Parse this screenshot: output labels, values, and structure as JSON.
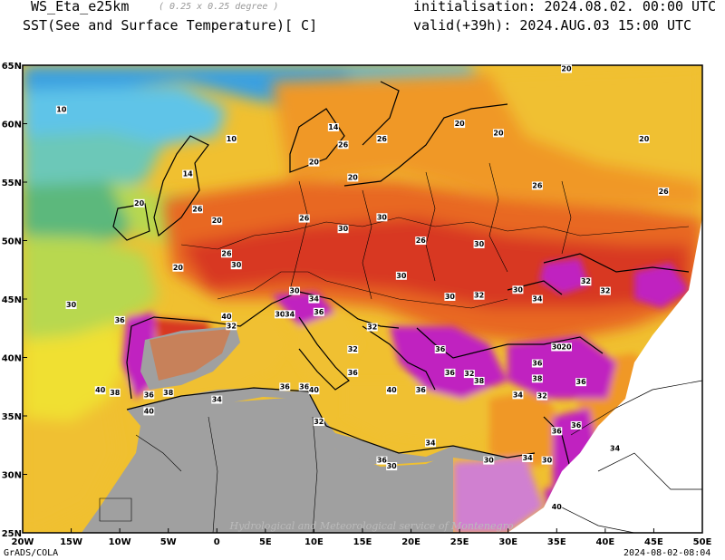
{
  "header": {
    "model": "WS_Eta_e25km",
    "resolution": "( 0.25 x 0.25 degree )",
    "variable": "SST(See and Surface Temperature)[ C]",
    "init": "initialisation: 2024.08.02. 00:00 UTC",
    "valid": "valid(+39h): 2024.AUG.03 15:00 UTC"
  },
  "footer": {
    "left": "GrADS/COLA",
    "right": "2024-08-02-08:04",
    "watermark": "Hydrological and Meteorological service of Montenegro"
  },
  "map": {
    "lon_ticks": [
      "20W",
      "15W",
      "10W",
      "5W",
      "0",
      "5E",
      "10E",
      "15E",
      "20E",
      "25E",
      "30E",
      "35E",
      "40E",
      "45E",
      "50E"
    ],
    "lat_ticks": [
      "65N",
      "60N",
      "55N",
      "50N",
      "45N",
      "40N",
      "35N",
      "30N",
      "25N"
    ],
    "colors": {
      "deep_blue": "#3aa0e0",
      "light_blue": "#5ec4e8",
      "teal": "#6cc8b8",
      "green": "#5cb87c",
      "yellow_green": "#b8d850",
      "yellow": "#f0e030",
      "gold": "#f0c030",
      "orange": "#f09828",
      "dark_orange": "#e86820",
      "red": "#d83820",
      "magenta": "#c020c0",
      "violet": "#d080d0",
      "land_gray": "#a0a0a0"
    },
    "contour_labels": [
      {
        "t": "10",
        "lon": -16,
        "lat": 61
      },
      {
        "t": "10",
        "lon": 1.5,
        "lat": 58.5
      },
      {
        "t": "14",
        "lon": -3,
        "lat": 55.5
      },
      {
        "t": "20",
        "lon": -8,
        "lat": 53
      },
      {
        "t": "26",
        "lon": -2,
        "lat": 52.5
      },
      {
        "t": "20",
        "lon": 0,
        "lat": 51.5
      },
      {
        "t": "26",
        "lon": 1,
        "lat": 48.7
      },
      {
        "t": "30",
        "lon": 2,
        "lat": 47.7
      },
      {
        "t": "20",
        "lon": -4,
        "lat": 47.5
      },
      {
        "t": "14",
        "lon": 12,
        "lat": 59.5
      },
      {
        "t": "20",
        "lon": 10,
        "lat": 56.5
      },
      {
        "t": "26",
        "lon": 13,
        "lat": 58
      },
      {
        "t": "26",
        "lon": 17,
        "lat": 58.5
      },
      {
        "t": "26",
        "lon": 9,
        "lat": 51.7
      },
      {
        "t": "30",
        "lon": 13,
        "lat": 50.8
      },
      {
        "t": "30",
        "lon": 17,
        "lat": 51.8
      },
      {
        "t": "26",
        "lon": 21,
        "lat": 49.8
      },
      {
        "t": "30",
        "lon": 27,
        "lat": 49.5
      },
      {
        "t": "30",
        "lon": 19,
        "lat": 46.8
      },
      {
        "t": "32",
        "lon": 38,
        "lat": 46.3
      },
      {
        "t": "32",
        "lon": 40,
        "lat": 45.5
      },
      {
        "t": "30",
        "lon": 24,
        "lat": 45
      },
      {
        "t": "32",
        "lon": 27,
        "lat": 45.1
      },
      {
        "t": "30",
        "lon": 31,
        "lat": 45.6
      },
      {
        "t": "34",
        "lon": 33,
        "lat": 44.8
      },
      {
        "t": "30",
        "lon": 8,
        "lat": 45.5
      },
      {
        "t": "34",
        "lon": 10,
        "lat": 44.8
      },
      {
        "t": "36",
        "lon": 10.5,
        "lat": 43.7
      },
      {
        "t": "32",
        "lon": 16,
        "lat": 42.4
      },
      {
        "t": "32",
        "lon": 14,
        "lat": 40.5
      },
      {
        "t": "36",
        "lon": 14,
        "lat": 38.5
      },
      {
        "t": "36",
        "lon": 23,
        "lat": 40.5
      },
      {
        "t": "36",
        "lon": 24,
        "lat": 38.5
      },
      {
        "t": "32",
        "lon": 26,
        "lat": 38.4
      },
      {
        "t": "38",
        "lon": 27,
        "lat": 37.8
      },
      {
        "t": "36",
        "lon": 33,
        "lat": 39.3
      },
      {
        "t": "38",
        "lon": 33,
        "lat": 38
      },
      {
        "t": "34",
        "lon": 31,
        "lat": 36.6
      },
      {
        "t": "32",
        "lon": 33.5,
        "lat": 36.5
      },
      {
        "t": "30",
        "lon": 35,
        "lat": 40.7
      },
      {
        "t": "20",
        "lon": 36,
        "lat": 40.7
      },
      {
        "t": "36",
        "lon": 37.5,
        "lat": 37.7
      },
      {
        "t": "40",
        "lon": 18,
        "lat": 37
      },
      {
        "t": "36",
        "lon": 21,
        "lat": 37
      },
      {
        "t": "30",
        "lon": -15,
        "lat": 44.3
      },
      {
        "t": "36",
        "lon": -10,
        "lat": 43
      },
      {
        "t": "40",
        "lon": -12,
        "lat": 37
      },
      {
        "t": "38",
        "lon": -10.5,
        "lat": 36.8
      },
      {
        "t": "36",
        "lon": -7,
        "lat": 36.6
      },
      {
        "t": "38",
        "lon": -5,
        "lat": 36.8
      },
      {
        "t": "40",
        "lon": -7,
        "lat": 35.2
      },
      {
        "t": "34",
        "lon": 0,
        "lat": 36.2
      },
      {
        "t": "32",
        "lon": 1.5,
        "lat": 42.5
      },
      {
        "t": "40",
        "lon": 1,
        "lat": 43.3
      },
      {
        "t": "30",
        "lon": 6.5,
        "lat": 43.5
      },
      {
        "t": "34",
        "lon": 7.5,
        "lat": 43.5
      },
      {
        "t": "36",
        "lon": 7,
        "lat": 37.3
      },
      {
        "t": "36",
        "lon": 9,
        "lat": 37.3
      },
      {
        "t": "40",
        "lon": 10,
        "lat": 37
      },
      {
        "t": "32",
        "lon": 10.5,
        "lat": 34.3
      },
      {
        "t": "34",
        "lon": 22,
        "lat": 32.5
      },
      {
        "t": "30",
        "lon": 18,
        "lat": 30.5
      },
      {
        "t": "36",
        "lon": 17,
        "lat": 31
      },
      {
        "t": "30",
        "lon": 28,
        "lat": 31
      },
      {
        "t": "34",
        "lon": 32,
        "lat": 31.2
      },
      {
        "t": "30",
        "lon": 34,
        "lat": 31
      },
      {
        "t": "36",
        "lon": 37,
        "lat": 34
      },
      {
        "t": "36",
        "lon": 35,
        "lat": 33.5
      },
      {
        "t": "34",
        "lon": 41,
        "lat": 32
      },
      {
        "t": "40",
        "lon": 35,
        "lat": 27
      },
      {
        "t": "20",
        "lon": 44,
        "lat": 58.5
      },
      {
        "t": "20",
        "lon": 36,
        "lat": 64.5
      },
      {
        "t": "26",
        "lon": 46,
        "lat": 54
      },
      {
        "t": "26",
        "lon": 33,
        "lat": 54.5
      },
      {
        "t": "20",
        "lon": 14,
        "lat": 55.2
      },
      {
        "t": "20",
        "lon": 25,
        "lat": 59.8
      },
      {
        "t": "20",
        "lon": 29,
        "lat": 59
      }
    ]
  }
}
